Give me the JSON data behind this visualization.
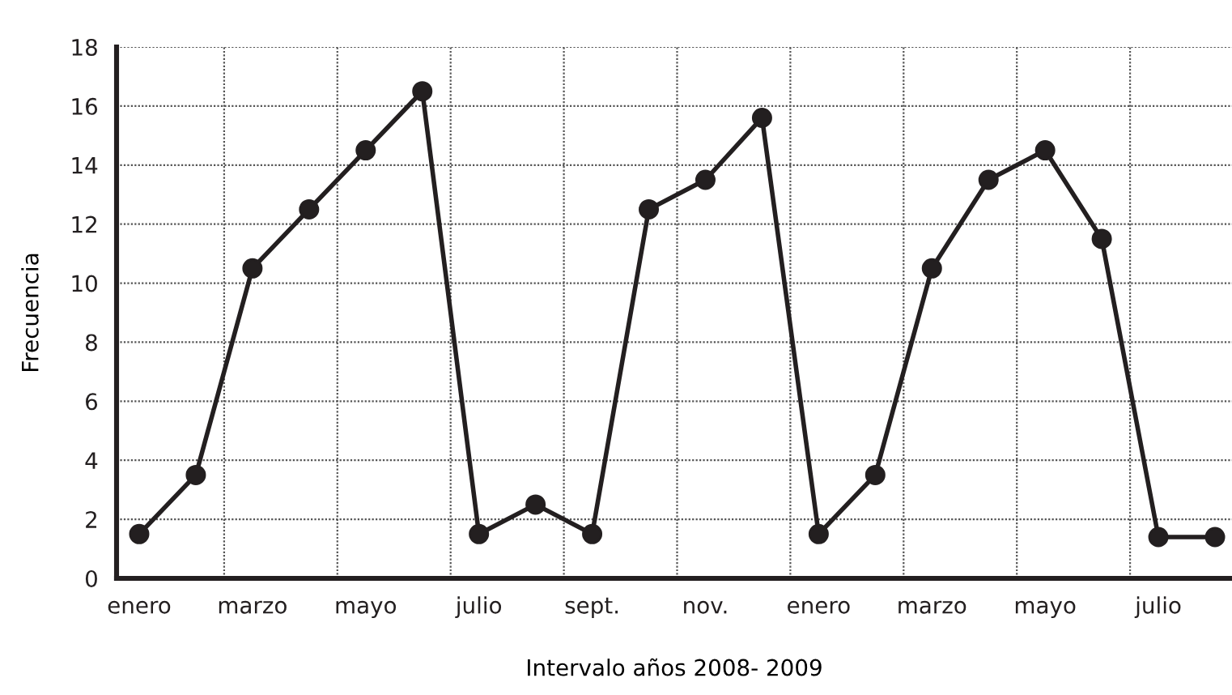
{
  "chart_data": {
    "type": "line",
    "xlabel": "Intervalo años 2008- 2009",
    "ylabel": "Frecuencia",
    "categories": [
      "enero",
      null,
      "marzo",
      null,
      "mayo",
      null,
      "julio",
      null,
      "sept.",
      null,
      "nov.",
      null,
      "enero",
      null,
      "marzo",
      null,
      "mayo",
      null,
      "julio",
      null
    ],
    "series": [
      {
        "color": "#231f20",
        "values": [
          1.5,
          3.5,
          10.5,
          12.5,
          14.5,
          16.5,
          1.5,
          2.5,
          1.5,
          12.5,
          13.5,
          15.6,
          1.5,
          3.5,
          10.5,
          13.5,
          14.5,
          11.5,
          1.4,
          1.4
        ]
      }
    ],
    "ylim": [
      0,
      18
    ],
    "yticks": [
      0,
      2,
      4,
      6,
      8,
      10,
      12,
      14,
      16,
      18
    ],
    "grid": true,
    "marker": "circle",
    "line_style": "solid"
  }
}
